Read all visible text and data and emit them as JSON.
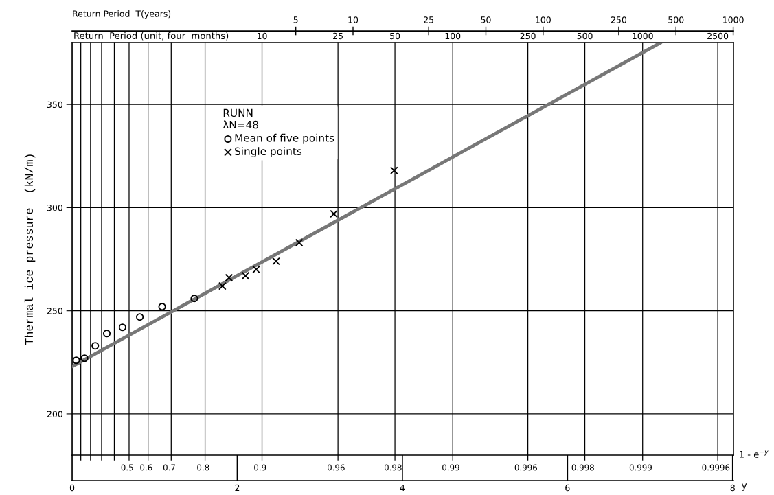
{
  "chart_data": {
    "type": "scatter",
    "xlim": [
      0,
      8.01
    ],
    "xticks": [
      0,
      2,
      4,
      6,
      8
    ],
    "xlabel": "y",
    "ylim": [
      180,
      380
    ],
    "yticks": [
      200,
      250,
      300,
      350
    ],
    "ylabel": "Thermal ice pressure  (kN/m)",
    "x2lim": [
      0.333,
      1003
    ],
    "x2label": "Return Period  T(years)",
    "log": "x2",
    "x2ticks": [
      5,
      10,
      25,
      50,
      100,
      250,
      500,
      1000
    ],
    "grid": "y",
    "legend": "top",
    "legend_title": "RUNN\nλN=48",
    "annotations": [
      "Return  Period (unit, four  months)",
      "1 - e$^{−y}$",
      "0.5",
      "0.6",
      "0.7",
      "0.8",
      "0.9",
      "0.96",
      "0.98",
      "0.99",
      "0.996",
      "0.998",
      "0.999",
      "0.9996",
      "10",
      "25",
      "50",
      "100",
      "250",
      "500",
      "1000",
      "2500"
    ],
    "ref_lines": [
      {
        "axis": "x",
        "value": 0.105,
        "color": "#000000"
      },
      {
        "axis": "x",
        "value": 0.223,
        "color": "#000000"
      },
      {
        "axis": "x",
        "value": 0.357,
        "color": "#000000"
      },
      {
        "axis": "x",
        "value": 0.511,
        "color": "#000000"
      },
      {
        "axis": "x",
        "value": 0.69
      },
      {
        "axis": "x",
        "value": 0.92
      },
      {
        "axis": "x",
        "value": 1.2
      },
      {
        "axis": "x",
        "value": 1.61
      },
      {
        "axis": "x",
        "value": 2.3
      },
      {
        "axis": "x",
        "value": 3.22
      },
      {
        "axis": "x",
        "value": 3.91
      },
      {
        "axis": "x",
        "value": 4.61
      },
      {
        "axis": "x",
        "value": 5.52
      },
      {
        "axis": "x",
        "value": 6.21
      },
      {
        "axis": "x",
        "value": 6.91
      },
      {
        "axis": "x",
        "value": 7.82
      }
    ],
    "series": [
      {
        "name": "Mean of five points",
        "marker": "circle",
        "color": "#000000",
        "x": [
          0.05,
          0.15,
          0.28,
          0.42,
          0.61,
          0.82,
          1.09,
          1.48
        ],
        "values": [
          226,
          227,
          233,
          239,
          242,
          247,
          252,
          256
        ]
      },
      {
        "name": "Single points",
        "marker": "cross",
        "color": "#000000",
        "x": [
          1.82,
          1.9,
          2.1,
          2.23,
          2.47,
          2.75,
          3.17,
          3.9
        ],
        "values": [
          262,
          266,
          267,
          270,
          274,
          283,
          297,
          318
        ]
      },
      {
        "type": "line",
        "marker": "none",
        "line_style": "solid",
        "color": "#777777",
        "x": [
          0,
          7.13
        ],
        "values": [
          223,
          380
        ]
      }
    ]
  }
}
